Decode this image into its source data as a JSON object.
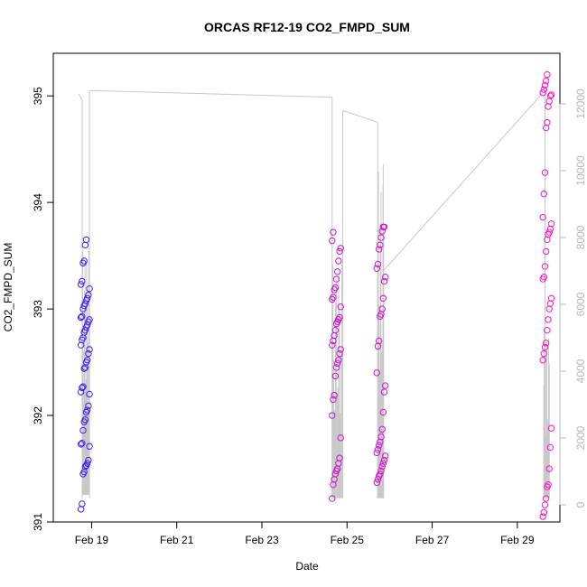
{
  "chart_data": {
    "type": "scatter",
    "title": "ORCAS RF12-19 CO2_FMPD_SUM",
    "xlabel": "Date",
    "ylabel": "CO2_FMPD_SUM",
    "x_ticks": [
      "Feb 19",
      "Feb 21",
      "Feb 23",
      "Feb 25",
      "Feb 27",
      "Feb 29"
    ],
    "x_tick_values": [
      19,
      21,
      23,
      25,
      27,
      29
    ],
    "xlim": [
      18.1,
      30.0
    ],
    "ylim": [
      391.0,
      395.4
    ],
    "y_ticks": [
      "391",
      "392",
      "393",
      "394",
      "395"
    ],
    "y_tick_values": [
      391,
      392,
      393,
      394,
      395
    ],
    "y2_ticks": [
      "0",
      "2000",
      "4000",
      "6000",
      "8000",
      "10000",
      "12000"
    ],
    "y2_tick_values": [
      0,
      2000,
      4000,
      6000,
      8000,
      10000,
      12000
    ],
    "y2lim": [
      0,
      12500
    ],
    "colors": {
      "point_start": "#3a1ef0",
      "point_end": "#ff10c8",
      "altitude_line": "#c8c8c8",
      "axis": "#000000",
      "right_axis": "#b8b8b8"
    },
    "series": [
      {
        "flight_day": 18.85,
        "values": [
          391.12,
          391.17,
          391.45,
          391.47,
          391.52,
          391.53,
          391.55,
          391.58,
          391.71,
          391.73,
          391.74,
          391.86,
          391.94,
          391.96,
          392.03,
          392.05,
          392.09,
          392.2,
          392.22,
          392.26,
          392.27,
          392.44,
          392.45,
          392.5,
          392.52,
          392.58,
          392.62,
          392.66,
          392.71,
          392.73,
          392.78,
          392.8,
          392.83,
          392.85,
          392.88,
          392.9,
          392.92,
          392.93,
          393.0,
          393.03,
          393.05,
          393.08,
          393.1,
          393.13,
          393.19,
          393.23,
          393.26,
          393.43,
          393.45,
          393.6,
          393.65
        ]
      },
      {
        "flight_day": 24.75,
        "values": [
          391.22,
          391.35,
          391.4,
          391.45,
          391.48,
          391.5,
          391.55,
          391.6,
          391.79,
          392.0,
          392.15,
          392.19,
          392.37,
          392.45,
          392.49,
          392.52,
          392.58,
          392.62,
          392.66,
          392.7,
          392.75,
          392.8,
          392.86,
          392.88,
          392.9,
          392.92,
          393.02,
          393.09,
          393.11,
          393.18,
          393.2,
          393.28,
          393.35,
          393.45,
          393.54,
          393.57,
          393.64,
          393.72
        ]
      },
      {
        "flight_day": 25.8,
        "values": [
          391.37,
          391.4,
          391.43,
          391.45,
          391.48,
          391.52,
          391.55,
          391.58,
          391.62,
          391.65,
          391.68,
          391.72,
          391.75,
          391.8,
          391.87,
          392.03,
          392.22,
          392.28,
          392.4,
          392.65,
          392.7,
          392.93,
          392.95,
          393.0,
          393.1,
          393.26,
          393.3,
          393.38,
          393.42,
          393.56,
          393.6,
          393.67,
          393.73,
          393.77,
          393.77
        ]
      },
      {
        "flight_day": 29.7,
        "values": [
          391.05,
          391.09,
          391.16,
          391.22,
          391.33,
          391.35,
          391.5,
          391.7,
          391.88,
          392.52,
          392.58,
          392.64,
          392.68,
          392.8,
          392.9,
          393.0,
          393.05,
          393.1,
          393.28,
          393.3,
          393.4,
          393.54,
          393.65,
          393.7,
          393.72,
          393.75,
          393.8,
          393.86,
          394.08,
          394.28,
          394.7,
          394.75,
          394.9,
          394.95,
          395.0,
          395.01,
          395.03,
          395.06,
          395.1,
          395.14,
          395.2
        ]
      }
    ]
  }
}
